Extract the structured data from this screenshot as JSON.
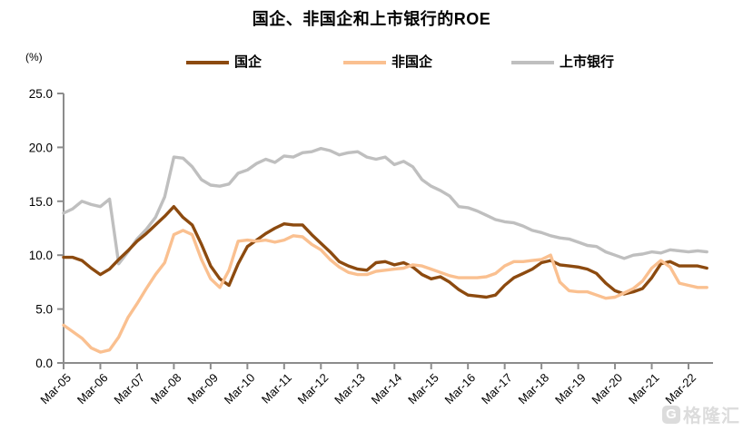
{
  "title": "国企、非国企和上市银行的ROE",
  "y_axis_unit": "(%)",
  "watermark": {
    "logo_letter": "G",
    "text": "格隆汇"
  },
  "colors": {
    "soe": "#8c4a0f",
    "non_soe": "#fac090",
    "banks": "#bfbfbf",
    "axis": "#8c8c8c",
    "text": "#000000"
  },
  "chart_data": {
    "type": "line",
    "title": "国企、非国企和上市银行的ROE",
    "ylabel": "(%)",
    "ylim": [
      0,
      25
    ],
    "y_ticks": [
      0,
      5,
      10,
      15,
      20,
      25
    ],
    "y_tick_labels": [
      "0.0",
      "5.0",
      "10.0",
      "15.0",
      "20.0",
      "25.0"
    ],
    "x_tick_labels": [
      "Mar-05",
      "Mar-06",
      "Mar-07",
      "Mar-08",
      "Mar-09",
      "Mar-10",
      "Mar-11",
      "Mar-12",
      "Mar-13",
      "Mar-14",
      "Mar-15",
      "Mar-16",
      "Mar-17",
      "Mar-18",
      "Mar-19",
      "Mar-20",
      "Mar-21",
      "Mar-22"
    ],
    "grid": false,
    "legend_position": "top",
    "categories": [
      "Mar-05",
      "Jun-05",
      "Sep-05",
      "Dec-05",
      "Mar-06",
      "Jun-06",
      "Sep-06",
      "Dec-06",
      "Mar-07",
      "Jun-07",
      "Sep-07",
      "Dec-07",
      "Mar-08",
      "Jun-08",
      "Sep-08",
      "Dec-08",
      "Mar-09",
      "Jun-09",
      "Sep-09",
      "Dec-09",
      "Mar-10",
      "Jun-10",
      "Sep-10",
      "Dec-10",
      "Mar-11",
      "Jun-11",
      "Sep-11",
      "Dec-11",
      "Mar-12",
      "Jun-12",
      "Sep-12",
      "Dec-12",
      "Mar-13",
      "Jun-13",
      "Sep-13",
      "Dec-13",
      "Mar-14",
      "Jun-14",
      "Sep-14",
      "Dec-14",
      "Mar-15",
      "Jun-15",
      "Sep-15",
      "Dec-15",
      "Mar-16",
      "Jun-16",
      "Sep-16",
      "Dec-16",
      "Mar-17",
      "Jun-17",
      "Sep-17",
      "Dec-17",
      "Mar-18",
      "Jun-18",
      "Sep-18",
      "Dec-18",
      "Mar-19",
      "Jun-19",
      "Sep-19",
      "Dec-19",
      "Mar-20",
      "Jun-20",
      "Sep-20",
      "Dec-20",
      "Mar-21",
      "Jun-21",
      "Sep-21",
      "Dec-21",
      "Mar-22",
      "Jun-22",
      "Sep-22"
    ],
    "series": [
      {
        "name": "国企",
        "color": "#8c4a0f",
        "values": [
          9.8,
          9.8,
          9.5,
          8.8,
          8.2,
          8.7,
          9.6,
          10.4,
          11.3,
          12.0,
          12.8,
          13.6,
          14.5,
          13.5,
          12.8,
          11.0,
          9.0,
          7.8,
          7.2,
          9.2,
          10.8,
          11.4,
          12.0,
          12.5,
          12.9,
          12.8,
          12.8,
          11.9,
          11.1,
          10.3,
          9.4,
          9.0,
          8.7,
          8.6,
          9.3,
          9.4,
          9.1,
          9.3,
          8.9,
          8.2,
          7.8,
          8.0,
          7.5,
          6.8,
          6.3,
          6.2,
          6.1,
          6.3,
          7.2,
          7.9,
          8.3,
          8.7,
          9.3,
          9.5,
          9.1,
          9.0,
          8.9,
          8.7,
          8.3,
          7.4,
          6.7,
          6.4,
          6.6,
          6.9,
          7.9,
          9.2,
          9.4,
          9.0,
          9.0,
          9.0,
          8.8
        ]
      },
      {
        "name": "非国企",
        "color": "#fac090",
        "values": [
          3.5,
          2.9,
          2.3,
          1.4,
          1.0,
          1.2,
          2.4,
          4.2,
          5.5,
          6.9,
          8.2,
          9.3,
          11.9,
          12.3,
          11.9,
          9.6,
          7.8,
          7.0,
          8.6,
          11.3,
          11.4,
          11.3,
          11.4,
          11.2,
          11.4,
          11.8,
          11.7,
          11.0,
          10.5,
          9.6,
          8.9,
          8.4,
          8.2,
          8.2,
          8.5,
          8.6,
          8.7,
          8.8,
          9.1,
          9.0,
          8.7,
          8.4,
          8.1,
          7.9,
          7.9,
          7.9,
          8.0,
          8.3,
          9.0,
          9.4,
          9.4,
          9.5,
          9.6,
          10.0,
          7.5,
          6.7,
          6.6,
          6.6,
          6.3,
          6.0,
          6.1,
          6.5,
          6.9,
          7.6,
          8.8,
          9.5,
          8.9,
          7.4,
          7.2,
          7.0,
          7.0
        ]
      },
      {
        "name": "上市银行",
        "color": "#bfbfbf",
        "values": [
          13.9,
          14.3,
          15.0,
          14.7,
          14.5,
          15.2,
          9.2,
          10.3,
          11.5,
          12.4,
          13.5,
          15.4,
          19.1,
          19.0,
          18.2,
          17.0,
          16.5,
          16.4,
          16.6,
          17.6,
          17.9,
          18.5,
          18.9,
          18.6,
          19.2,
          19.1,
          19.5,
          19.6,
          19.9,
          19.7,
          19.3,
          19.5,
          19.6,
          19.1,
          18.9,
          19.1,
          18.4,
          18.7,
          18.2,
          17.0,
          16.4,
          16.0,
          15.5,
          14.5,
          14.4,
          14.1,
          13.7,
          13.3,
          13.1,
          13.0,
          12.7,
          12.3,
          12.1,
          11.8,
          11.6,
          11.5,
          11.2,
          10.9,
          10.8,
          10.3,
          10.0,
          9.7,
          10.0,
          10.1,
          10.3,
          10.2,
          10.5,
          10.4,
          10.3,
          10.4,
          10.3
        ]
      }
    ]
  },
  "legend": {
    "items": [
      {
        "label": "国企",
        "color": "#8c4a0f"
      },
      {
        "label": "非国企",
        "color": "#fac090"
      },
      {
        "label": "上市银行",
        "color": "#bfbfbf"
      }
    ]
  }
}
